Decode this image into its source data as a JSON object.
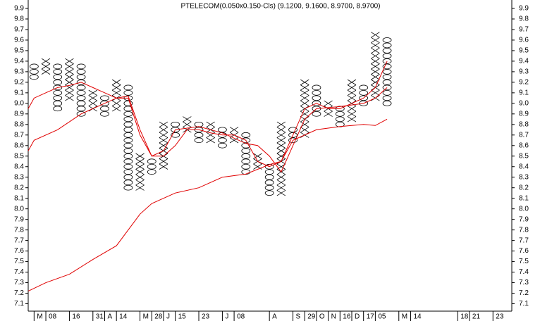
{
  "chart_data": {
    "type": "point-and-figure",
    "title": "PTELECOM(0.050x0.150-Cls) (9.1200, 9.1600, 8.9700, 8.9700)",
    "box_size": 0.05,
    "columns": [
      {
        "type": "O",
        "low": 9.25,
        "high": 9.35
      },
      {
        "type": "X",
        "low": 9.3,
        "high": 9.4
      },
      {
        "type": "O",
        "low": 8.95,
        "high": 9.35
      },
      {
        "type": "X",
        "low": 9.05,
        "high": 9.4
      },
      {
        "type": "O",
        "low": 8.9,
        "high": 9.35
      },
      {
        "type": "X",
        "low": 8.95,
        "high": 9.1
      },
      {
        "type": "O",
        "low": 8.9,
        "high": 9.05
      },
      {
        "type": "X",
        "low": 8.95,
        "high": 9.2
      },
      {
        "type": "O",
        "low": 8.2,
        "high": 9.15
      },
      {
        "type": "X",
        "low": 8.2,
        "high": 8.5
      },
      {
        "type": "O",
        "low": 8.35,
        "high": 8.45
      },
      {
        "type": "X",
        "low": 8.4,
        "high": 8.8
      },
      {
        "type": "O",
        "low": 8.7,
        "high": 8.8
      },
      {
        "type": "X",
        "low": 8.75,
        "high": 8.85
      },
      {
        "type": "O",
        "low": 8.65,
        "high": 8.8
      },
      {
        "type": "X",
        "low": 8.65,
        "high": 8.8
      },
      {
        "type": "O",
        "low": 8.6,
        "high": 8.75
      },
      {
        "type": "X",
        "low": 8.65,
        "high": 8.75
      },
      {
        "type": "O",
        "low": 8.35,
        "high": 8.7
      },
      {
        "type": "X",
        "low": 8.4,
        "high": 8.5
      },
      {
        "type": "O",
        "low": 8.15,
        "high": 8.4
      },
      {
        "type": "X",
        "low": 8.15,
        "high": 8.8
      },
      {
        "type": "O",
        "low": 8.65,
        "high": 8.75
      },
      {
        "type": "X",
        "low": 8.7,
        "high": 9.2
      },
      {
        "type": "O",
        "low": 8.9,
        "high": 9.15
      },
      {
        "type": "X",
        "low": 8.9,
        "high": 9.0
      },
      {
        "type": "O",
        "low": 8.8,
        "high": 8.95
      },
      {
        "type": "X",
        "low": 8.85,
        "high": 9.2
      },
      {
        "type": "O",
        "low": 9.0,
        "high": 9.15
      },
      {
        "type": "X",
        "low": 9.05,
        "high": 9.65
      },
      {
        "type": "O",
        "low": 9.0,
        "high": 9.6
      }
    ],
    "symbol_color": "#000000",
    "series": [
      {
        "color": "#e00000",
        "x": [
          -0.5,
          0,
          1,
          2,
          3,
          4,
          5,
          6,
          7,
          8,
          9,
          10,
          11,
          12,
          13,
          14,
          15,
          16,
          17,
          18,
          19,
          20,
          21,
          22,
          23,
          24,
          25,
          26,
          27,
          28,
          29,
          30
        ],
        "values": [
          8.95,
          9.05,
          9.1,
          9.15,
          9.17,
          9.2,
          9.15,
          9.1,
          9.05,
          9.07,
          8.75,
          8.5,
          8.5,
          8.6,
          8.75,
          8.75,
          8.72,
          8.7,
          8.7,
          8.65,
          8.45,
          8.4,
          8.45,
          8.7,
          8.95,
          9.0,
          8.95,
          8.95,
          9.0,
          9.05,
          9.15,
          9.4
        ]
      },
      {
        "color": "#e00000",
        "x": [
          -0.5,
          0,
          2,
          4,
          6,
          7,
          8,
          9,
          10,
          11,
          12,
          14,
          16,
          18,
          19,
          20,
          21,
          22,
          23,
          24,
          26,
          28,
          29,
          30
        ],
        "values": [
          8.55,
          8.65,
          8.75,
          8.9,
          9.0,
          9.05,
          9.05,
          8.7,
          8.5,
          8.55,
          8.75,
          8.78,
          8.72,
          8.62,
          8.6,
          8.5,
          8.35,
          8.6,
          8.85,
          8.95,
          8.97,
          9.0,
          9.05,
          9.15
        ]
      },
      {
        "color": "#e00000",
        "x": [
          -0.5,
          1,
          3,
          5,
          7,
          9,
          10,
          12,
          14,
          16,
          18,
          20,
          21,
          22,
          24,
          26,
          28,
          29,
          30
        ],
        "values": [
          7.22,
          7.3,
          7.38,
          7.52,
          7.65,
          7.95,
          8.05,
          8.15,
          8.2,
          8.3,
          8.33,
          8.42,
          8.45,
          8.65,
          8.75,
          8.78,
          8.8,
          8.79,
          8.85
        ]
      }
    ],
    "xlim": [
      -0.5,
      40.6
    ],
    "xticks": [
      {
        "value": 0,
        "label": "M"
      },
      {
        "value": 1,
        "label": "08"
      },
      {
        "value": 3,
        "label": "16"
      },
      {
        "value": 5,
        "label": "31"
      },
      {
        "value": 6,
        "label": "A"
      },
      {
        "value": 7,
        "label": "14"
      },
      {
        "value": 9,
        "label": "M"
      },
      {
        "value": 10,
        "label": "28"
      },
      {
        "value": 11,
        "label": "J"
      },
      {
        "value": 12,
        "label": "15"
      },
      {
        "value": 14,
        "label": "23"
      },
      {
        "value": 16,
        "label": "J"
      },
      {
        "value": 17,
        "label": "08"
      },
      {
        "value": 20,
        "label": "A"
      },
      {
        "value": 22,
        "label": "S"
      },
      {
        "value": 23,
        "label": "29"
      },
      {
        "value": 24,
        "label": "O"
      },
      {
        "value": 25,
        "label": "N"
      },
      {
        "value": 26,
        "label": "16"
      },
      {
        "value": 27,
        "label": "D"
      },
      {
        "value": 28,
        "label": "17"
      },
      {
        "value": 29,
        "label": "05"
      },
      {
        "value": 31,
        "label": "M"
      },
      {
        "value": 32,
        "label": "14"
      },
      {
        "value": 36,
        "label": "18"
      },
      {
        "value": 37,
        "label": "21"
      },
      {
        "value": 39,
        "label": "23"
      }
    ],
    "ylim": [
      7.03,
      9.98
    ],
    "yticks": [
      7.1,
      7.2,
      7.3,
      7.4,
      7.5,
      7.6,
      7.7,
      7.8,
      7.9,
      {
        "value": 8.0,
        "label": "8.0"
      },
      8.1,
      8.2,
      8.3,
      8.4,
      8.5,
      8.6,
      8.7,
      8.8,
      8.9,
      {
        "value": 9.0,
        "label": "9.0"
      },
      9.1,
      9.2,
      9.3,
      9.4,
      9.5,
      9.6,
      9.7,
      9.8,
      9.9
    ]
  }
}
